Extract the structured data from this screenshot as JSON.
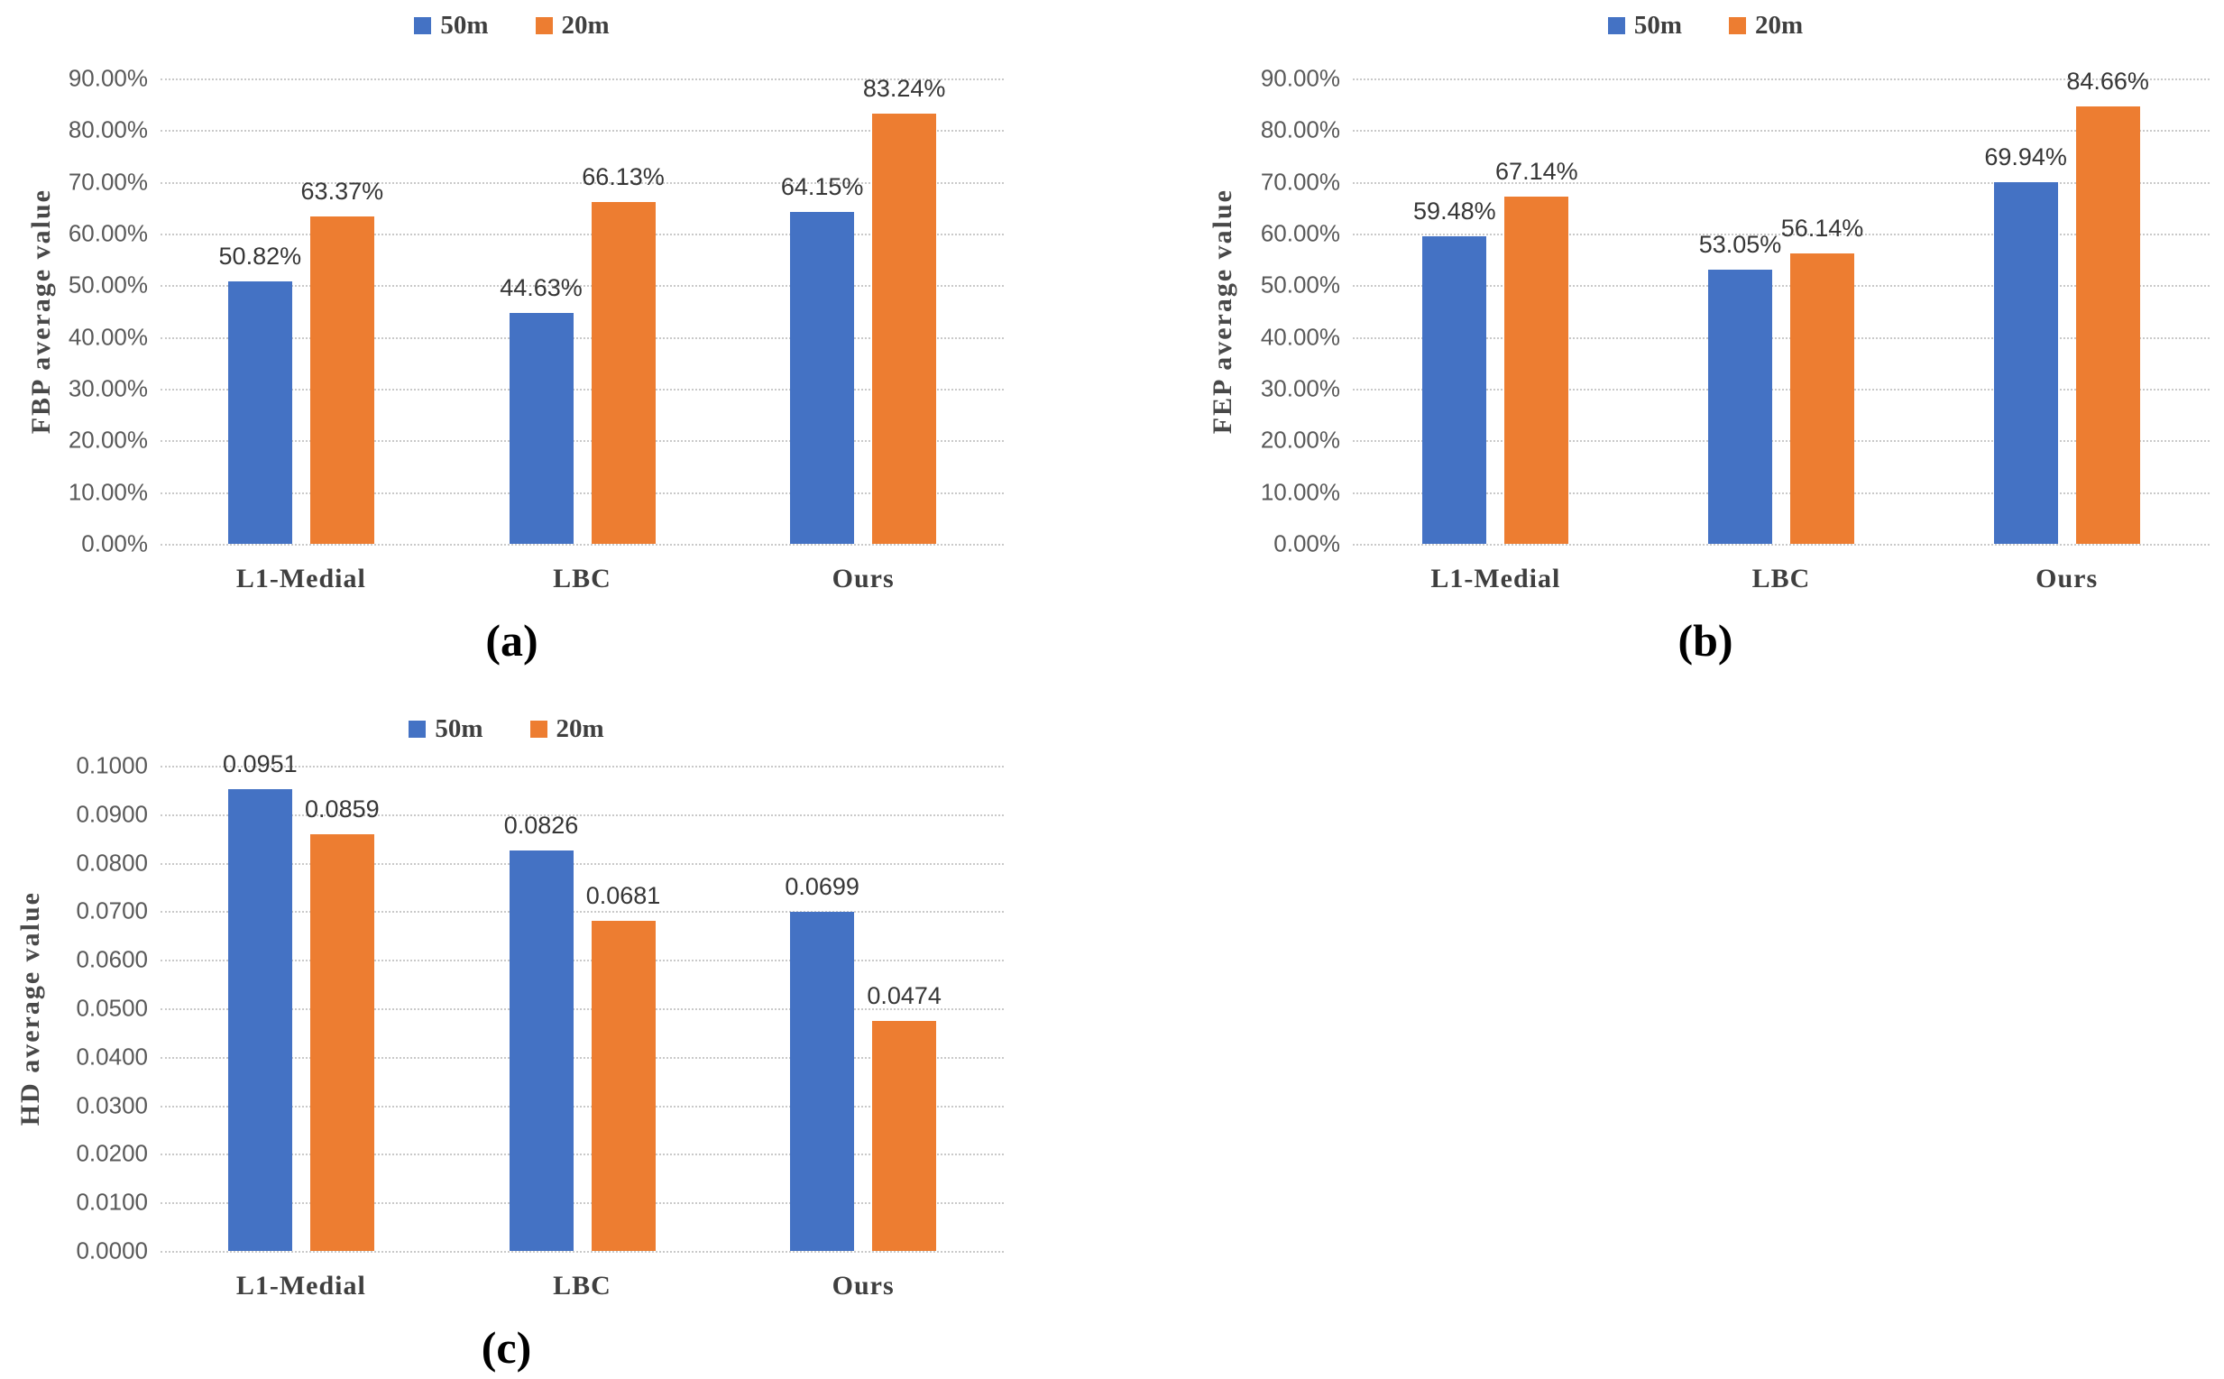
{
  "chart_data": [
    {
      "type": "bar",
      "caption": "(a)",
      "ylabel": "FBP average value",
      "categories": [
        "L1-Medial",
        "LBC",
        "Ours"
      ],
      "series": [
        {
          "name": "50m",
          "color": "#4472C4",
          "values": [
            50.82,
            44.63,
            64.15
          ],
          "labels": [
            "50.82%",
            "44.63%",
            "64.15%"
          ]
        },
        {
          "name": "20m",
          "color": "#ED7D31",
          "values": [
            63.37,
            66.13,
            83.24
          ],
          "labels": [
            "63.37%",
            "66.13%",
            "83.24%"
          ]
        }
      ],
      "ylim": [
        0,
        90
      ],
      "yticks": [
        "90.00%",
        "80.00%",
        "70.00%",
        "60.00%",
        "50.00%",
        "40.00%",
        "30.00%",
        "20.00%",
        "10.00%",
        "0.00%"
      ],
      "grid": "on",
      "legend_position": "top"
    },
    {
      "type": "bar",
      "caption": "(b)",
      "ylabel": "FEP average value",
      "categories": [
        "L1-Medial",
        "LBC",
        "Ours"
      ],
      "series": [
        {
          "name": "50m",
          "color": "#4472C4",
          "values": [
            59.48,
            53.05,
            69.94
          ],
          "labels": [
            "59.48%",
            "53.05%",
            "69.94%"
          ]
        },
        {
          "name": "20m",
          "color": "#ED7D31",
          "values": [
            67.14,
            56.14,
            84.66
          ],
          "labels": [
            "67.14%",
            "56.14%",
            "84.66%"
          ]
        }
      ],
      "ylim": [
        0,
        90
      ],
      "yticks": [
        "90.00%",
        "80.00%",
        "70.00%",
        "60.00%",
        "50.00%",
        "40.00%",
        "30.00%",
        "20.00%",
        "10.00%",
        "0.00%"
      ],
      "grid": "on",
      "legend_position": "top"
    },
    {
      "type": "bar",
      "caption": "(c)",
      "ylabel": "HD average value",
      "categories": [
        "L1-Medial",
        "LBC",
        "Ours"
      ],
      "series": [
        {
          "name": "50m",
          "color": "#4472C4",
          "values": [
            0.0951,
            0.0826,
            0.0699
          ],
          "labels": [
            "0.0951",
            "0.0826",
            "0.0699"
          ]
        },
        {
          "name": "20m",
          "color": "#ED7D31",
          "values": [
            0.0859,
            0.0681,
            0.0474
          ],
          "labels": [
            "0.0859",
            "0.0681",
            "0.0474"
          ]
        }
      ],
      "ylim": [
        0,
        0.1
      ],
      "yticks": [
        "0.1000",
        "0.0900",
        "0.0800",
        "0.0700",
        "0.0600",
        "0.0500",
        "0.0400",
        "0.0300",
        "0.0200",
        "0.0100",
        "0.0000"
      ],
      "grid": "on",
      "legend_position": "top"
    }
  ]
}
